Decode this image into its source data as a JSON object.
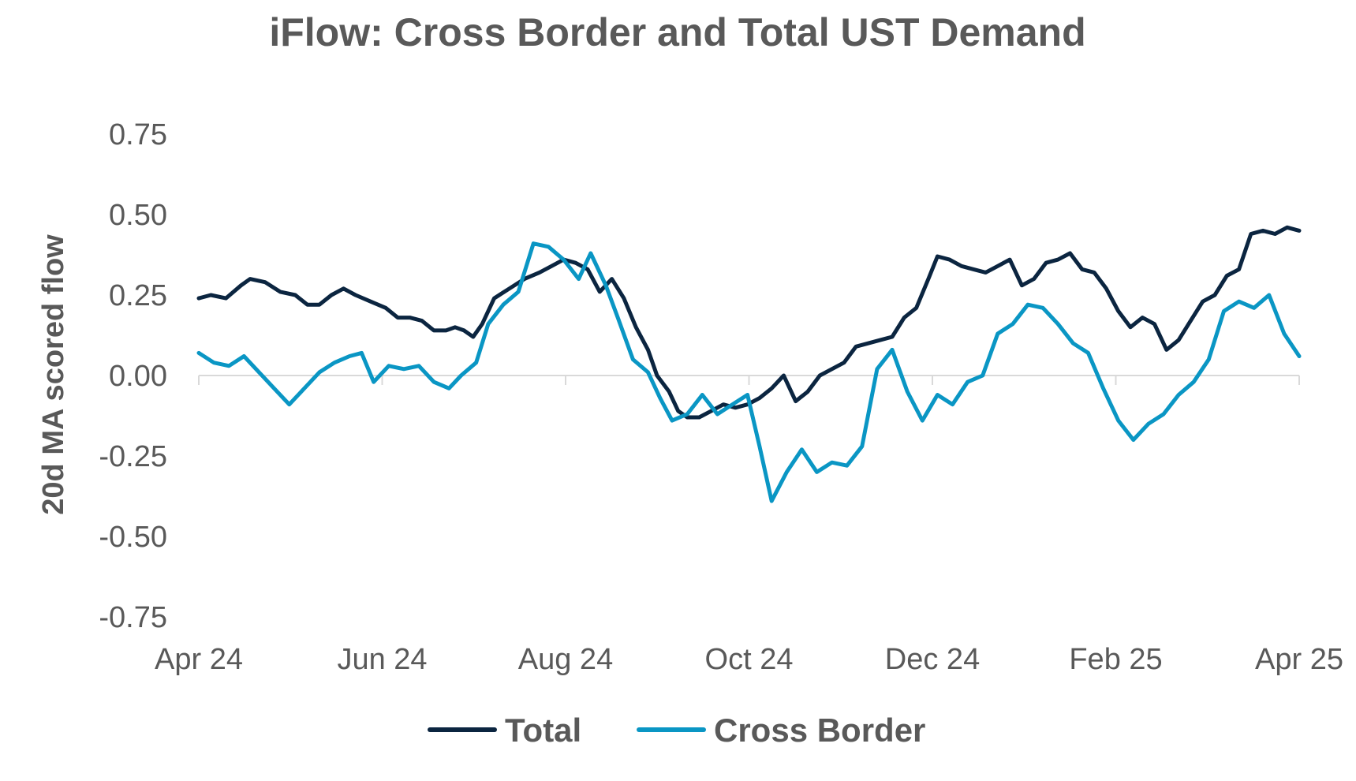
{
  "chart_data": {
    "type": "line",
    "title": "iFlow: Cross Border and Total UST Demand",
    "xlabel": "",
    "ylabel": "20d MA scored flow",
    "xlim": [
      "2024-04-01",
      "2025-04-01"
    ],
    "ylim": [
      -0.75,
      0.75
    ],
    "x_tick_labels": [
      "Apr 24",
      "Jun 24",
      "Aug 24",
      "Oct 24",
      "Dec 24",
      "Feb 25",
      "Apr 25"
    ],
    "y_tick_labels": [
      "0.75",
      "0.50",
      "0.25",
      "0.00",
      "-0.25",
      "-0.50",
      "-0.75"
    ],
    "y_ticks": [
      0.75,
      0.5,
      0.25,
      0.0,
      -0.25,
      -0.5,
      -0.75
    ],
    "grid": false,
    "legend_position": "bottom",
    "series": [
      {
        "name": "Total",
        "color": "#0b2540",
        "points": [
          [
            "2024-04-01",
            0.24
          ],
          [
            "2024-04-05",
            0.25
          ],
          [
            "2024-04-10",
            0.24
          ],
          [
            "2024-04-15",
            0.28
          ],
          [
            "2024-04-18",
            0.3
          ],
          [
            "2024-04-23",
            0.29
          ],
          [
            "2024-04-28",
            0.26
          ],
          [
            "2024-05-03",
            0.25
          ],
          [
            "2024-05-07",
            0.22
          ],
          [
            "2024-05-11",
            0.22
          ],
          [
            "2024-05-15",
            0.25
          ],
          [
            "2024-05-19",
            0.27
          ],
          [
            "2024-05-23",
            0.25
          ],
          [
            "2024-05-28",
            0.23
          ],
          [
            "2024-06-02",
            0.21
          ],
          [
            "2024-06-06",
            0.18
          ],
          [
            "2024-06-10",
            0.18
          ],
          [
            "2024-06-14",
            0.17
          ],
          [
            "2024-06-18",
            0.14
          ],
          [
            "2024-06-22",
            0.14
          ],
          [
            "2024-06-25",
            0.15
          ],
          [
            "2024-06-28",
            0.14
          ],
          [
            "2024-07-01",
            0.12
          ],
          [
            "2024-07-04",
            0.16
          ],
          [
            "2024-07-08",
            0.24
          ],
          [
            "2024-07-13",
            0.27
          ],
          [
            "2024-07-18",
            0.3
          ],
          [
            "2024-07-23",
            0.32
          ],
          [
            "2024-07-27",
            0.34
          ],
          [
            "2024-07-31",
            0.36
          ],
          [
            "2024-08-04",
            0.35
          ],
          [
            "2024-08-08",
            0.33
          ],
          [
            "2024-08-12",
            0.26
          ],
          [
            "2024-08-16",
            0.3
          ],
          [
            "2024-08-20",
            0.24
          ],
          [
            "2024-08-24",
            0.15
          ],
          [
            "2024-08-28",
            0.08
          ],
          [
            "2024-08-31",
            0.0
          ],
          [
            "2024-09-04",
            -0.05
          ],
          [
            "2024-09-07",
            -0.11
          ],
          [
            "2024-09-10",
            -0.13
          ],
          [
            "2024-09-14",
            -0.13
          ],
          [
            "2024-09-18",
            -0.11
          ],
          [
            "2024-09-22",
            -0.09
          ],
          [
            "2024-09-26",
            -0.1
          ],
          [
            "2024-09-30",
            -0.09
          ],
          [
            "2024-10-04",
            -0.07
          ],
          [
            "2024-10-08",
            -0.04
          ],
          [
            "2024-10-12",
            0.0
          ],
          [
            "2024-10-16",
            -0.08
          ],
          [
            "2024-10-20",
            -0.05
          ],
          [
            "2024-10-24",
            0.0
          ],
          [
            "2024-10-28",
            0.02
          ],
          [
            "2024-11-01",
            0.04
          ],
          [
            "2024-11-05",
            0.09
          ],
          [
            "2024-11-09",
            0.1
          ],
          [
            "2024-11-13",
            0.11
          ],
          [
            "2024-11-17",
            0.12
          ],
          [
            "2024-11-21",
            0.18
          ],
          [
            "2024-11-25",
            0.21
          ],
          [
            "2024-11-29",
            0.3
          ],
          [
            "2024-12-02",
            0.37
          ],
          [
            "2024-12-06",
            0.36
          ],
          [
            "2024-12-10",
            0.34
          ],
          [
            "2024-12-14",
            0.33
          ],
          [
            "2024-12-18",
            0.32
          ],
          [
            "2024-12-22",
            0.34
          ],
          [
            "2024-12-26",
            0.36
          ],
          [
            "2024-12-30",
            0.28
          ],
          [
            "2025-01-03",
            0.3
          ],
          [
            "2025-01-07",
            0.35
          ],
          [
            "2025-01-11",
            0.36
          ],
          [
            "2025-01-15",
            0.38
          ],
          [
            "2025-01-19",
            0.33
          ],
          [
            "2025-01-23",
            0.32
          ],
          [
            "2025-01-27",
            0.27
          ],
          [
            "2025-01-31",
            0.2
          ],
          [
            "2025-02-04",
            0.15
          ],
          [
            "2025-02-08",
            0.18
          ],
          [
            "2025-02-12",
            0.16
          ],
          [
            "2025-02-16",
            0.08
          ],
          [
            "2025-02-20",
            0.11
          ],
          [
            "2025-02-24",
            0.17
          ],
          [
            "2025-02-28",
            0.23
          ],
          [
            "2025-03-04",
            0.25
          ],
          [
            "2025-03-08",
            0.31
          ],
          [
            "2025-03-12",
            0.33
          ],
          [
            "2025-03-16",
            0.44
          ],
          [
            "2025-03-20",
            0.45
          ],
          [
            "2025-03-24",
            0.44
          ],
          [
            "2025-03-28",
            0.46
          ],
          [
            "2025-04-01",
            0.45
          ]
        ]
      },
      {
        "name": "Cross Border",
        "color": "#0a96c4",
        "points": [
          [
            "2024-04-01",
            0.07
          ],
          [
            "2024-04-06",
            0.04
          ],
          [
            "2024-04-11",
            0.03
          ],
          [
            "2024-04-16",
            0.06
          ],
          [
            "2024-04-21",
            0.01
          ],
          [
            "2024-04-26",
            -0.04
          ],
          [
            "2024-05-01",
            -0.09
          ],
          [
            "2024-05-06",
            -0.04
          ],
          [
            "2024-05-11",
            0.01
          ],
          [
            "2024-05-16",
            0.04
          ],
          [
            "2024-05-21",
            0.06
          ],
          [
            "2024-05-25",
            0.07
          ],
          [
            "2024-05-29",
            -0.02
          ],
          [
            "2024-06-03",
            0.03
          ],
          [
            "2024-06-08",
            0.02
          ],
          [
            "2024-06-13",
            0.03
          ],
          [
            "2024-06-18",
            -0.02
          ],
          [
            "2024-06-23",
            -0.04
          ],
          [
            "2024-06-27",
            0.0
          ],
          [
            "2024-07-02",
            0.04
          ],
          [
            "2024-07-06",
            0.16
          ],
          [
            "2024-07-11",
            0.22
          ],
          [
            "2024-07-16",
            0.26
          ],
          [
            "2024-07-21",
            0.41
          ],
          [
            "2024-07-26",
            0.4
          ],
          [
            "2024-07-31",
            0.36
          ],
          [
            "2024-08-05",
            0.3
          ],
          [
            "2024-08-09",
            0.38
          ],
          [
            "2024-08-14",
            0.28
          ],
          [
            "2024-08-18",
            0.18
          ],
          [
            "2024-08-23",
            0.05
          ],
          [
            "2024-08-28",
            0.01
          ],
          [
            "2024-09-01",
            -0.07
          ],
          [
            "2024-09-05",
            -0.14
          ],
          [
            "2024-09-10",
            -0.12
          ],
          [
            "2024-09-15",
            -0.06
          ],
          [
            "2024-09-20",
            -0.12
          ],
          [
            "2024-09-25",
            -0.09
          ],
          [
            "2024-09-30",
            -0.06
          ],
          [
            "2024-10-04",
            -0.22
          ],
          [
            "2024-10-08",
            -0.39
          ],
          [
            "2024-10-13",
            -0.3
          ],
          [
            "2024-10-18",
            -0.23
          ],
          [
            "2024-10-23",
            -0.3
          ],
          [
            "2024-10-28",
            -0.27
          ],
          [
            "2024-11-02",
            -0.28
          ],
          [
            "2024-11-07",
            -0.22
          ],
          [
            "2024-11-12",
            0.02
          ],
          [
            "2024-11-17",
            0.08
          ],
          [
            "2024-11-22",
            -0.05
          ],
          [
            "2024-11-27",
            -0.14
          ],
          [
            "2024-12-02",
            -0.06
          ],
          [
            "2024-12-07",
            -0.09
          ],
          [
            "2024-12-12",
            -0.02
          ],
          [
            "2024-12-17",
            0.0
          ],
          [
            "2024-12-22",
            0.13
          ],
          [
            "2024-12-27",
            0.16
          ],
          [
            "2025-01-01",
            0.22
          ],
          [
            "2025-01-06",
            0.21
          ],
          [
            "2025-01-11",
            0.16
          ],
          [
            "2025-01-16",
            0.1
          ],
          [
            "2025-01-21",
            0.07
          ],
          [
            "2025-01-26",
            -0.04
          ],
          [
            "2025-01-31",
            -0.14
          ],
          [
            "2025-02-05",
            -0.2
          ],
          [
            "2025-02-10",
            -0.15
          ],
          [
            "2025-02-15",
            -0.12
          ],
          [
            "2025-02-20",
            -0.06
          ],
          [
            "2025-02-25",
            -0.02
          ],
          [
            "2025-03-02",
            0.05
          ],
          [
            "2025-03-07",
            0.2
          ],
          [
            "2025-03-12",
            0.23
          ],
          [
            "2025-03-17",
            0.21
          ],
          [
            "2025-03-22",
            0.25
          ],
          [
            "2025-03-27",
            0.13
          ],
          [
            "2025-04-01",
            0.06
          ]
        ]
      }
    ]
  }
}
